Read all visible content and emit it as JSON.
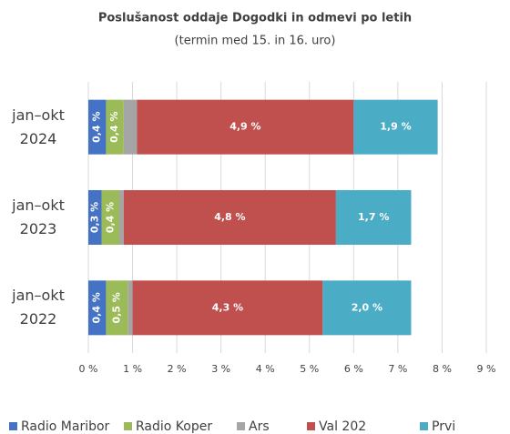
{
  "chart_data": {
    "type": "stacked_bar_horizontal",
    "title": "Poslušanost oddaje Dogodki in odmevi po letih",
    "subtitle": "(termin med 15. in 16. uro)",
    "categories": [
      "jan–okt 2024",
      "jan–okt 2023",
      "jan–okt 2022"
    ],
    "series": [
      {
        "name": "Radio Maribor",
        "color": "#4472c4",
        "values": [
          0.4,
          0.3,
          0.4
        ],
        "value_labels": [
          "0,4 %",
          "0,3 %",
          "0,4 %"
        ]
      },
      {
        "name": "Radio Koper",
        "color": "#9bbb59",
        "values": [
          0.4,
          0.4,
          0.5
        ],
        "value_labels": [
          "0,4 %",
          "0,4 %",
          "0,5 %"
        ]
      },
      {
        "name": "Ars",
        "color": "#a5a5a5",
        "values": [
          0.3,
          0.1,
          0.1
        ]
      },
      {
        "name": "Val 202",
        "color": "#c0504d",
        "values": [
          4.9,
          4.8,
          4.3
        ],
        "value_labels": [
          "4,9 %",
          "4,8 %",
          "4,3 %"
        ]
      },
      {
        "name": "Prvi",
        "color": "#4bacc6",
        "values": [
          1.9,
          1.7,
          2.0
        ],
        "value_labels": [
          "1,9 %",
          "1,7 %",
          "2,0 %"
        ]
      }
    ],
    "xlim": [
      0,
      9
    ],
    "xticks": [
      {
        "value": 0,
        "label": "0 %"
      },
      {
        "value": 1,
        "label": "1 %"
      },
      {
        "value": 2,
        "label": "2 %"
      },
      {
        "value": 3,
        "label": "3 %"
      },
      {
        "value": 4,
        "label": "4 %"
      },
      {
        "value": 5,
        "label": "5 %"
      },
      {
        "value": 6,
        "label": "6 %"
      },
      {
        "value": 7,
        "label": "7 %"
      },
      {
        "value": 8,
        "label": "8 %"
      },
      {
        "value": 9,
        "label": "9 %"
      }
    ],
    "grid": true,
    "legend": "bottom"
  }
}
